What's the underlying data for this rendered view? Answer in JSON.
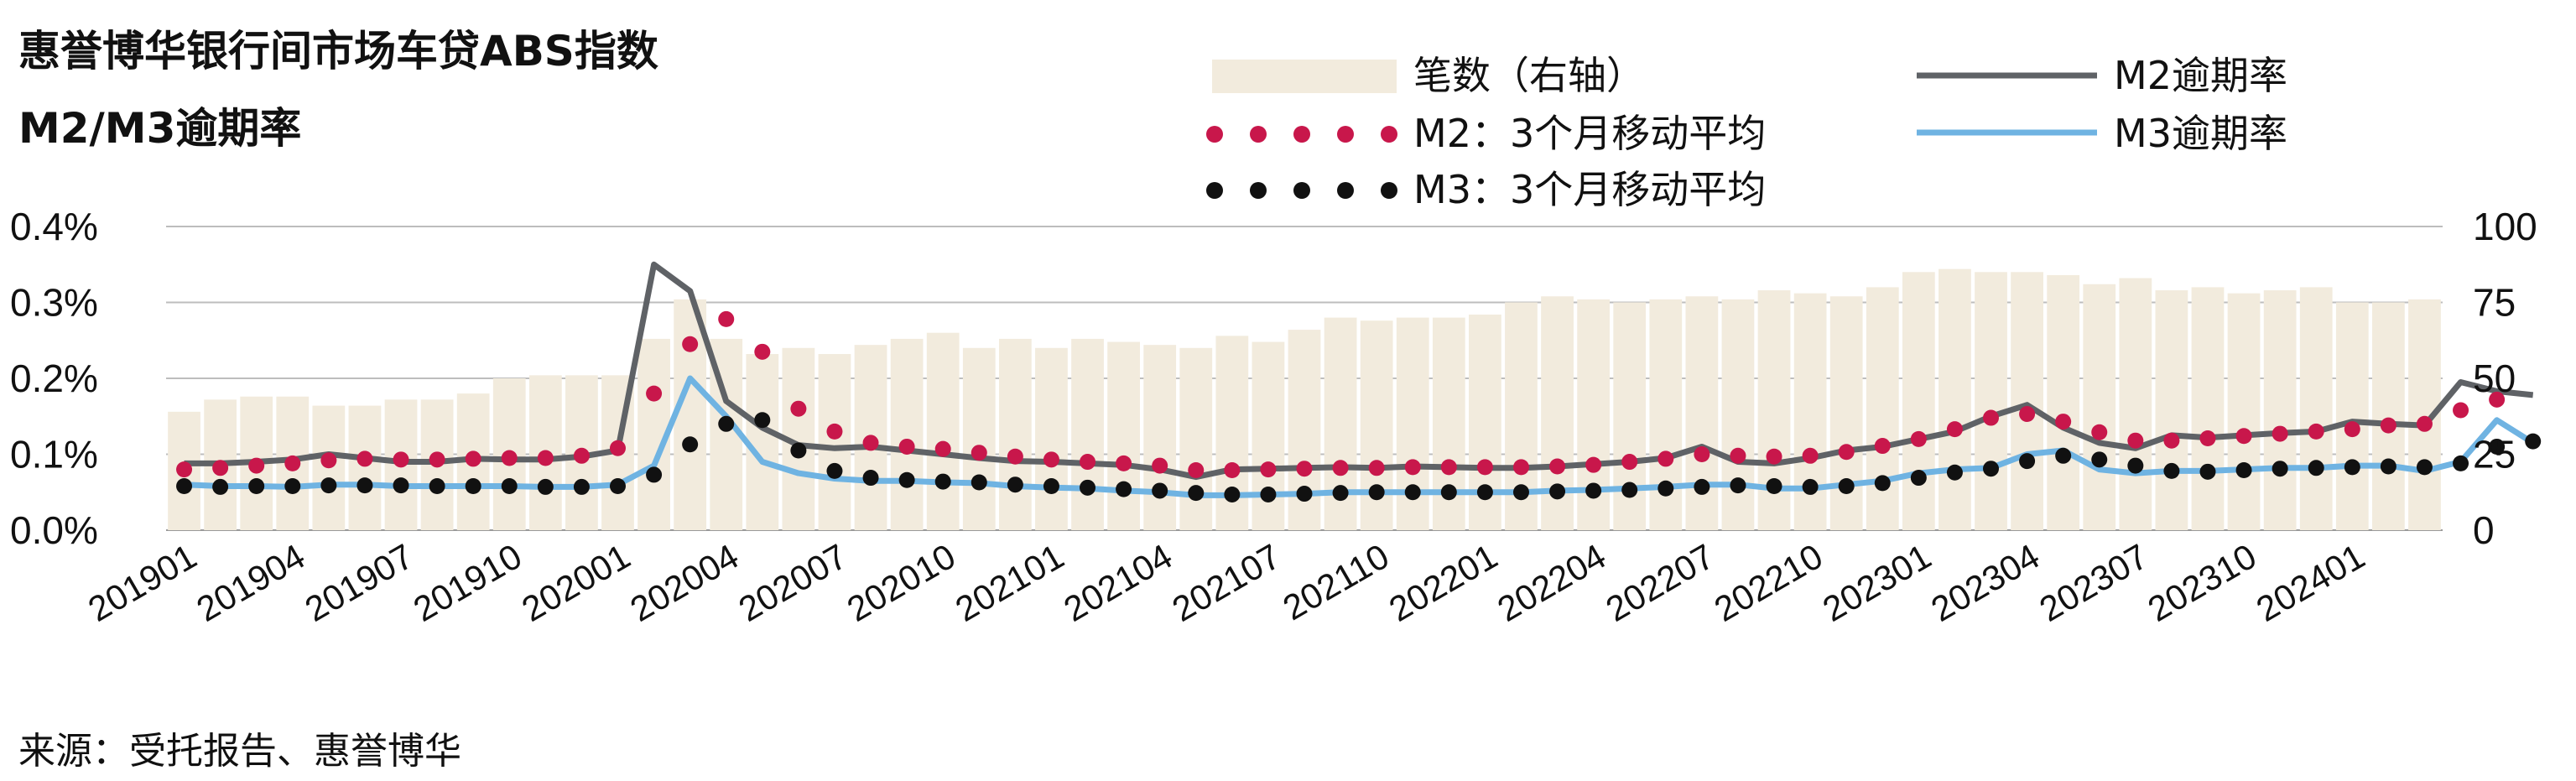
{
  "title_lines": [
    "惠誉博华银行间市场车贷ABS指数",
    "M2/M3逾期率"
  ],
  "source": "来源：受托报告、惠誉博华",
  "legend": {
    "bars": "笔数（右轴）",
    "m2_avg": "M2：3个月移动平均",
    "m3_avg": "M3：3个月移动平均",
    "m2": "M2逾期率",
    "m3": "M3逾期率"
  },
  "colors": {
    "bars": "#f2ebdd",
    "m2_line": "#5f6266",
    "m3_line": "#6fb3e2",
    "m2_avg": "#c8174b",
    "m3_avg": "#111111",
    "grid": "#bdbdbd"
  },
  "chart_data": {
    "type": "bar+line",
    "left_axis": {
      "ticks": [
        "0.0%",
        "0.1%",
        "0.2%",
        "0.3%",
        "0.4%"
      ],
      "range": [
        0,
        0.4
      ],
      "unit": "%"
    },
    "right_axis": {
      "ticks": [
        "0",
        "25",
        "50",
        "75",
        "100"
      ],
      "range": [
        0,
        100
      ]
    },
    "x_tick_labels": [
      "201901",
      "201904",
      "201907",
      "201910",
      "202001",
      "202004",
      "202007",
      "202010",
      "202101",
      "202104",
      "202107",
      "202110",
      "202201",
      "202204",
      "202207",
      "202210",
      "202301",
      "202304",
      "202307",
      "202310",
      "202401"
    ],
    "x_tick_every": 3,
    "grid": "horizontal",
    "series": [
      {
        "name": "笔数（右轴）",
        "type": "bar",
        "axis": "right",
        "values": [
          39,
          43,
          44,
          44,
          41,
          41,
          43,
          43,
          45,
          50,
          51,
          51,
          51,
          63,
          76,
          63,
          58,
          60,
          58,
          61,
          63,
          65,
          60,
          63,
          60,
          63,
          62,
          61,
          60,
          64,
          62,
          66,
          70,
          69,
          70,
          70,
          71,
          75,
          77,
          76,
          75,
          76,
          77,
          76,
          79,
          78,
          77,
          80,
          85,
          86,
          85,
          85,
          84,
          81,
          83,
          79,
          80,
          78,
          79,
          80,
          75,
          75,
          76
        ]
      },
      {
        "name": "M2逾期率",
        "type": "line",
        "axis": "left",
        "values": [
          0.088,
          0.088,
          0.09,
          0.093,
          0.1,
          0.095,
          0.09,
          0.09,
          0.094,
          0.093,
          0.093,
          0.097,
          0.105,
          0.35,
          0.315,
          0.17,
          0.135,
          0.112,
          0.108,
          0.11,
          0.105,
          0.1,
          0.095,
          0.091,
          0.09,
          0.088,
          0.086,
          0.08,
          0.07,
          0.08,
          0.081,
          0.082,
          0.083,
          0.082,
          0.084,
          0.083,
          0.082,
          0.082,
          0.084,
          0.087,
          0.09,
          0.095,
          0.11,
          0.09,
          0.088,
          0.095,
          0.105,
          0.11,
          0.12,
          0.13,
          0.15,
          0.165,
          0.135,
          0.115,
          0.108,
          0.125,
          0.122,
          0.125,
          0.128,
          0.13,
          0.143,
          0.14,
          0.138,
          0.195,
          0.183,
          0.178
        ]
      },
      {
        "name": "M3逾期率",
        "type": "line",
        "axis": "left",
        "values": [
          0.06,
          0.058,
          0.058,
          0.057,
          0.06,
          0.06,
          0.058,
          0.058,
          0.058,
          0.058,
          0.057,
          0.057,
          0.06,
          0.085,
          0.2,
          0.15,
          0.09,
          0.075,
          0.068,
          0.065,
          0.065,
          0.063,
          0.062,
          0.058,
          0.056,
          0.055,
          0.052,
          0.05,
          0.046,
          0.046,
          0.047,
          0.048,
          0.05,
          0.05,
          0.05,
          0.05,
          0.05,
          0.05,
          0.052,
          0.053,
          0.055,
          0.057,
          0.06,
          0.06,
          0.055,
          0.055,
          0.06,
          0.065,
          0.075,
          0.08,
          0.082,
          0.1,
          0.105,
          0.08,
          0.075,
          0.078,
          0.078,
          0.08,
          0.082,
          0.082,
          0.085,
          0.085,
          0.078,
          0.09,
          0.145,
          0.115
        ]
      },
      {
        "name": "M2：3个月移动平均",
        "type": "dots",
        "axis": "left",
        "values": [
          0.08,
          0.082,
          0.085,
          0.088,
          0.092,
          0.094,
          0.093,
          0.093,
          0.094,
          0.095,
          0.095,
          0.098,
          0.108,
          0.18,
          0.245,
          0.278,
          0.235,
          0.16,
          0.13,
          0.115,
          0.11,
          0.107,
          0.102,
          0.097,
          0.093,
          0.09,
          0.088,
          0.085,
          0.079,
          0.079,
          0.08,
          0.081,
          0.082,
          0.082,
          0.083,
          0.083,
          0.083,
          0.083,
          0.084,
          0.086,
          0.09,
          0.094,
          0.1,
          0.098,
          0.097,
          0.098,
          0.103,
          0.111,
          0.12,
          0.133,
          0.148,
          0.153,
          0.143,
          0.129,
          0.118,
          0.118,
          0.121,
          0.124,
          0.127,
          0.13,
          0.133,
          0.138,
          0.14,
          0.158,
          0.172
        ]
      },
      {
        "name": "M3：3个月移动平均",
        "type": "dots",
        "axis": "left",
        "values": [
          0.058,
          0.057,
          0.058,
          0.058,
          0.059,
          0.059,
          0.059,
          0.058,
          0.058,
          0.058,
          0.057,
          0.057,
          0.058,
          0.073,
          0.113,
          0.14,
          0.145,
          0.105,
          0.078,
          0.069,
          0.066,
          0.064,
          0.063,
          0.06,
          0.058,
          0.056,
          0.054,
          0.052,
          0.049,
          0.047,
          0.047,
          0.048,
          0.049,
          0.05,
          0.05,
          0.05,
          0.05,
          0.05,
          0.051,
          0.052,
          0.053,
          0.055,
          0.057,
          0.059,
          0.058,
          0.057,
          0.058,
          0.062,
          0.069,
          0.076,
          0.081,
          0.091,
          0.098,
          0.093,
          0.085,
          0.078,
          0.077,
          0.079,
          0.081,
          0.082,
          0.083,
          0.084,
          0.083,
          0.088,
          0.11,
          0.117
        ]
      }
    ]
  }
}
